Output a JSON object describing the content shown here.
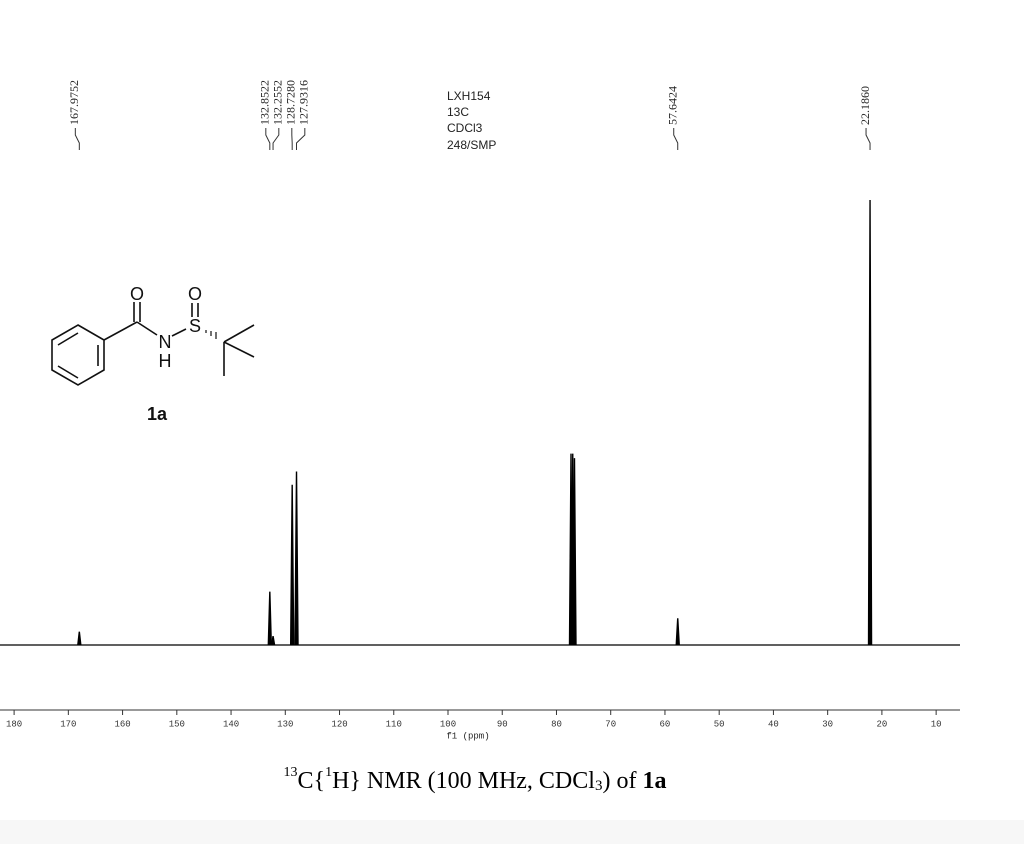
{
  "chart_data": {
    "type": "nmr",
    "annotations": [
      "LXH154",
      "13C",
      "CDCl3",
      "248/SMP"
    ],
    "x_label": "f1 (ppm)",
    "caption": [
      "13",
      "C{",
      "1",
      "H} NMR (100 MHz, CDCl",
      "3",
      ") of ",
      "1a"
    ],
    "x": [
      167.9752,
      132.8522,
      132.2552,
      128.728,
      127.9316,
      77.32,
      77.0,
      76.68,
      57.6424,
      22.186
    ],
    "values": [
      3,
      12,
      2,
      36,
      39,
      43,
      43,
      42,
      6,
      100
    ],
    "peak_labels": [
      "167.9752",
      "132.8522",
      "132.2552",
      "128.7280",
      "127.9316",
      null,
      null,
      null,
      "57.6424",
      "22.1860"
    ],
    "color": "#000000",
    "xlim": [
      182.6,
      5.6
    ],
    "ylim": [
      0,
      100
    ],
    "xticks": [
      180,
      170,
      160,
      150,
      140,
      130,
      120,
      110,
      100,
      90,
      80,
      70,
      60,
      50,
      40,
      30,
      20,
      10
    ],
    "molecule": {
      "atoms": [
        "O",
        "O",
        "S",
        "N",
        "H"
      ],
      "label": "1a"
    }
  }
}
